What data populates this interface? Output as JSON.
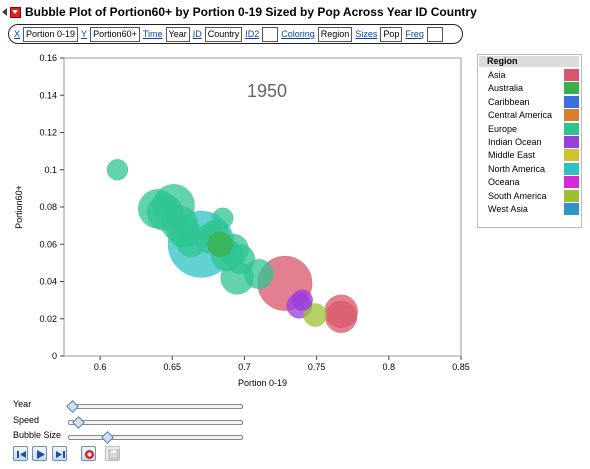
{
  "title": "Bubble Plot of Portion60+ by Portion 0-19 Sized by Pop Across Year ID Country",
  "roles": [
    {
      "link": "X",
      "value": "Portion 0-19"
    },
    {
      "link": "Y",
      "value": "Portion60+"
    },
    {
      "link": "Time",
      "value": "Year"
    },
    {
      "link": "ID",
      "value": "Country"
    },
    {
      "link": "ID2",
      "value": ""
    },
    {
      "link": "Coloring",
      "value": "Region"
    },
    {
      "link": "Sizes",
      "value": "Pop"
    },
    {
      "link": "Freq",
      "value": ""
    }
  ],
  "plot": {
    "year_label": "1950",
    "xlabel": "Portion 0-19",
    "ylabel": "Portion60+",
    "xlim": [
      0.575,
      0.85
    ],
    "ylim": [
      0,
      0.16
    ],
    "xticks": [
      "0.6",
      "0.65",
      "0.7",
      "0.75",
      "0.8",
      "0.85"
    ],
    "xtick_values": [
      0.6,
      0.65,
      0.7,
      0.75,
      0.8,
      0.85
    ],
    "yticks": [
      "0",
      "0.02",
      "0.04",
      "0.06",
      "0.08",
      "0.1",
      "0.12",
      "0.14",
      "0.16"
    ],
    "ytick_values": [
      0,
      0.02,
      0.04,
      0.06,
      0.08,
      0.1,
      0.12,
      0.14,
      0.16
    ]
  },
  "chart_data": {
    "type": "scatter",
    "xlabel": "Portion 0-19",
    "ylabel": "Portion60+",
    "xlim": [
      0.575,
      0.85
    ],
    "ylim": [
      0,
      0.16
    ],
    "size_variable": "Pop",
    "color_variable": "Region",
    "points": [
      {
        "x": 0.612,
        "y": 0.1,
        "size": 0.6,
        "region": "Europe"
      },
      {
        "x": 0.64,
        "y": 0.079,
        "size": 3,
        "region": "Europe"
      },
      {
        "x": 0.645,
        "y": 0.077,
        "size": 2.5,
        "region": "Europe"
      },
      {
        "x": 0.651,
        "y": 0.081,
        "size": 3.5,
        "region": "Europe"
      },
      {
        "x": 0.655,
        "y": 0.071,
        "size": 2.5,
        "region": "Europe"
      },
      {
        "x": 0.658,
        "y": 0.067,
        "size": 2,
        "region": "Europe"
      },
      {
        "x": 0.663,
        "y": 0.061,
        "size": 1.5,
        "region": "Europe"
      },
      {
        "x": 0.67,
        "y": 0.06,
        "size": 10,
        "region": "North America"
      },
      {
        "x": 0.676,
        "y": 0.063,
        "size": 1.5,
        "region": "Europe"
      },
      {
        "x": 0.68,
        "y": 0.066,
        "size": 1.2,
        "region": "Europe"
      },
      {
        "x": 0.683,
        "y": 0.06,
        "size": 1,
        "region": "Australia"
      },
      {
        "x": 0.685,
        "y": 0.074,
        "size": 0.6,
        "region": "Europe"
      },
      {
        "x": 0.688,
        "y": 0.054,
        "size": 1.8,
        "region": "Europe"
      },
      {
        "x": 0.692,
        "y": 0.057,
        "size": 1.8,
        "region": "Europe"
      },
      {
        "x": 0.695,
        "y": 0.042,
        "size": 2,
        "region": "Europe"
      },
      {
        "x": 0.697,
        "y": 0.052,
        "size": 1.5,
        "region": "Europe"
      },
      {
        "x": 0.71,
        "y": 0.044,
        "size": 1.5,
        "region": "Europe"
      },
      {
        "x": 0.728,
        "y": 0.039,
        "size": 6.5,
        "region": "Asia"
      },
      {
        "x": 0.738,
        "y": 0.027,
        "size": 1,
        "region": "Indian Ocean"
      },
      {
        "x": 0.74,
        "y": 0.03,
        "size": 0.6,
        "region": "Indian Ocean"
      },
      {
        "x": 0.749,
        "y": 0.022,
        "size": 0.8,
        "region": "South America"
      },
      {
        "x": 0.767,
        "y": 0.024,
        "size": 2,
        "region": "Asia"
      },
      {
        "x": 0.767,
        "y": 0.021,
        "size": 1.8,
        "region": "Asia"
      }
    ]
  },
  "legend": {
    "title": "Region",
    "items": [
      {
        "label": "Asia",
        "color": "#d9566a"
      },
      {
        "label": "Australia",
        "color": "#3caf4b"
      },
      {
        "label": "Caribbean",
        "color": "#3b6fe0"
      },
      {
        "label": "Central America",
        "color": "#d97f2a"
      },
      {
        "label": "Europe",
        "color": "#2ec492"
      },
      {
        "label": "Indian Ocean",
        "color": "#9a3ddf"
      },
      {
        "label": "Middle East",
        "color": "#cfc22b"
      },
      {
        "label": "North America",
        "color": "#2fc2c4"
      },
      {
        "label": "Oceana",
        "color": "#d52bd2"
      },
      {
        "label": "South America",
        "color": "#9cc030"
      },
      {
        "label": "West Asia",
        "color": "#2f95c8"
      }
    ]
  },
  "sliders": [
    {
      "label": "Year",
      "value": 0.02
    },
    {
      "label": "Speed",
      "value": 0.05
    },
    {
      "label": "Bubble Size",
      "value": 0.22
    }
  ],
  "controls": [
    {
      "name": "step-back-button",
      "icon": "step-back-icon"
    },
    {
      "name": "play-button",
      "icon": "play-icon"
    },
    {
      "name": "step-forward-button",
      "icon": "step-forward-icon"
    },
    {
      "name": "record-button",
      "icon": "record-icon"
    },
    {
      "name": "save-button",
      "icon": "floppy-icon"
    }
  ]
}
